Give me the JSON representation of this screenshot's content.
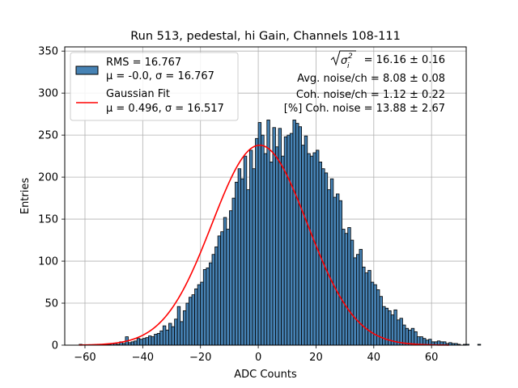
{
  "chart_data": {
    "type": "bar",
    "title": "Run 513, pedestal, hi Gain, Channels 108-111",
    "xlabel": "ADC Counts",
    "ylabel": "Entries",
    "xlim": [
      -67,
      72
    ],
    "ylim": [
      0,
      355
    ],
    "xticks": [
      -60,
      -40,
      -20,
      0,
      20,
      40,
      60
    ],
    "yticks": [
      0,
      50,
      100,
      150,
      200,
      250,
      300,
      350
    ],
    "grid": true,
    "legend_placement": "top-left",
    "histogram": {
      "name": "RMS = 16.767",
      "stats": "μ = -0.0, σ = 16.767",
      "color": "#4682b4",
      "edge_color": "#000000",
      "bin_width": 1,
      "bin_start": -62,
      "counts": [
        1,
        0,
        0,
        0,
        0,
        0,
        0,
        0,
        0,
        1,
        1,
        2,
        2,
        1,
        4,
        2,
        10,
        3,
        4,
        5,
        8,
        7,
        8,
        9,
        11,
        10,
        13,
        14,
        17,
        23,
        18,
        26,
        22,
        31,
        46,
        28,
        41,
        50,
        57,
        60,
        67,
        72,
        75,
        90,
        92,
        98,
        108,
        117,
        130,
        135,
        152,
        138,
        160,
        175,
        194,
        210,
        198,
        225,
        185,
        232,
        210,
        246,
        265,
        250,
        228,
        268,
        218,
        259,
        236,
        258,
        225,
        248,
        250,
        252,
        268,
        264,
        260,
        238,
        249,
        228,
        225,
        229,
        232,
        218,
        210,
        205,
        185,
        198,
        176,
        180,
        172,
        138,
        133,
        140,
        125,
        104,
        108,
        114,
        93,
        86,
        89,
        75,
        72,
        66,
        58,
        46,
        44,
        41,
        36,
        42,
        30,
        32,
        24,
        20,
        18,
        20,
        16,
        10,
        10,
        8,
        6,
        7,
        4,
        4,
        5,
        4,
        4,
        2,
        3,
        2,
        2,
        1,
        0,
        1,
        1,
        0,
        0,
        0,
        1
      ]
    },
    "series": [
      {
        "name": "Gaussian Fit",
        "stats": "μ = 0.496, σ = 16.517",
        "type": "line",
        "color": "#ff0000",
        "mu": 0.496,
        "sigma": 16.517,
        "amplitude": 238,
        "x_range": [
          -62,
          66
        ]
      }
    ],
    "annotations": {
      "sigma_label": " = 16.16 ± 0.16",
      "avg_noise": "Avg. noise/ch = 8.08 ± 0.08",
      "coh_noise": "Coh. noise/ch = 1.12 ± 0.22",
      "pct_coh_noise": "[%] Coh. noise = 13.88 ± 2.67"
    }
  }
}
